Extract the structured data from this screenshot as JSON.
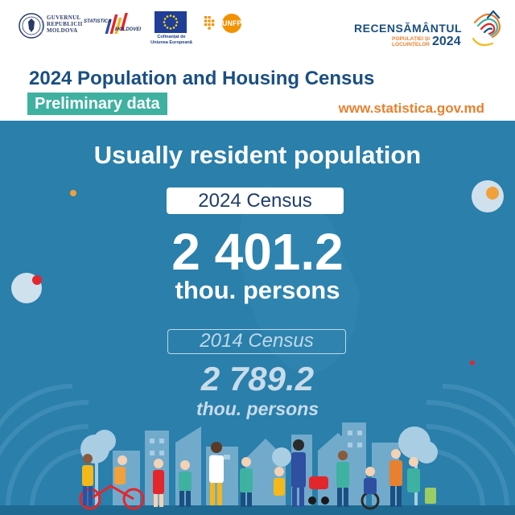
{
  "logos": {
    "government": {
      "lines": [
        "GUVERNUL",
        "REPUBLICII",
        "MOLDOVA"
      ],
      "icon": "coat-of-arms-icon"
    },
    "statistics": {
      "line1": "STATISTICA",
      "line2": "MOLDOVEI",
      "icon": "statistics-bars-icon"
    },
    "eu": {
      "caption_lines": [
        "Cofinanțat de",
        "Uniunea Europeană"
      ],
      "icon": "eu-flag-icon"
    },
    "undp_unfpa": {
      "label": "UNFPA",
      "icon": "undp-unfpa-icon"
    },
    "census": {
      "name": "RECENSĂMÂNTUL",
      "sub_lines": [
        "POPULAȚIEI ȘI",
        "LOCUINȚELOR"
      ],
      "year": "2024",
      "icon": "census-swirl-icon"
    }
  },
  "header": {
    "title": "2024 Population and Housing Census",
    "badge": "Preliminary data",
    "website": "www.statistica.gov.md"
  },
  "main": {
    "title": "Usually resident population",
    "current": {
      "label": "2024 Census",
      "value": "2 401.2",
      "unit": "thou. persons"
    },
    "previous": {
      "label": "2014 Census",
      "value": "2 789.2",
      "unit": "thou. persons"
    }
  },
  "colors": {
    "background": "#2a7fab",
    "navy": "#1a4f82",
    "orange": "#e8812f",
    "teal": "#3fb1a1",
    "white": "#ffffff",
    "muted": "#c8dcea"
  }
}
